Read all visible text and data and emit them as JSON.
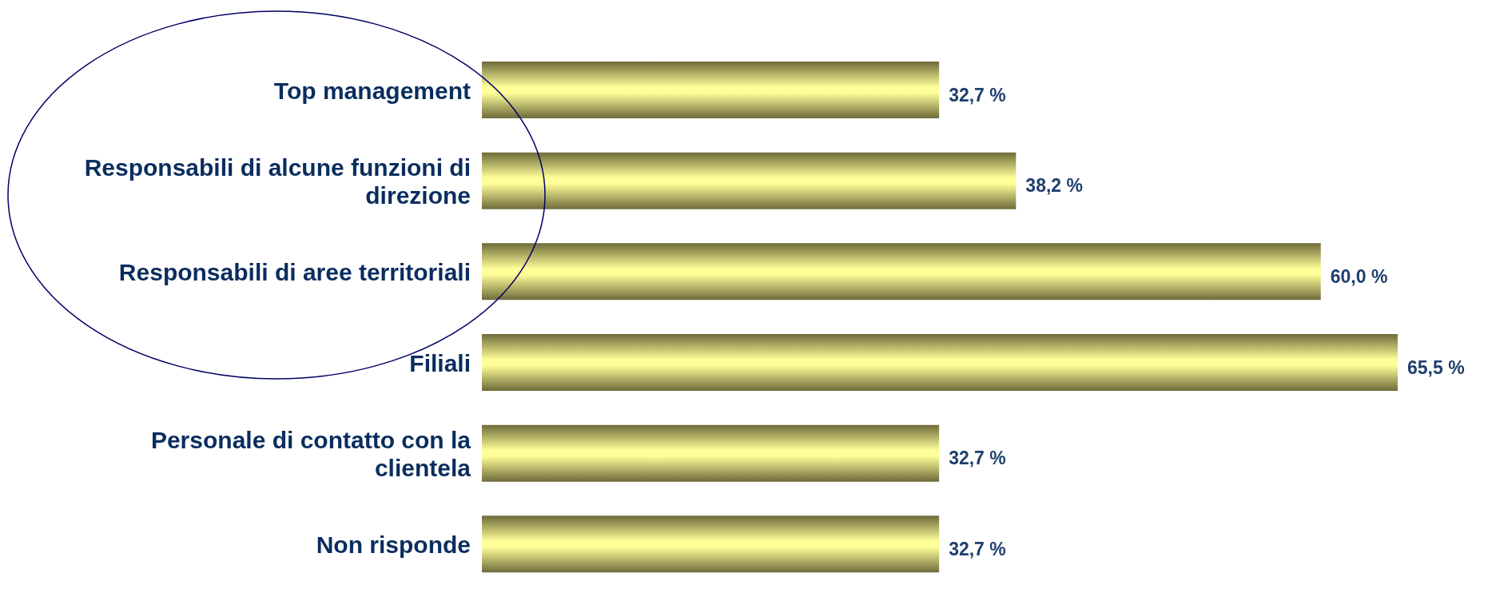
{
  "chart_data": {
    "type": "bar",
    "orientation": "horizontal",
    "categories": [
      "Top management",
      "Responsabili di alcune funzioni di direzione",
      "Responsabili di aree territoriali",
      "Filiali",
      "Personale di contatto con la clientela",
      "Non risponde"
    ],
    "values": [
      32.7,
      38.2,
      60.0,
      65.5,
      32.7,
      32.7
    ],
    "value_labels": [
      "32,7 %",
      "38,2 %",
      "60,0 %",
      "65,5 %",
      "32,7 %",
      "32,7 %"
    ],
    "color": "#ffff99"
  }
}
